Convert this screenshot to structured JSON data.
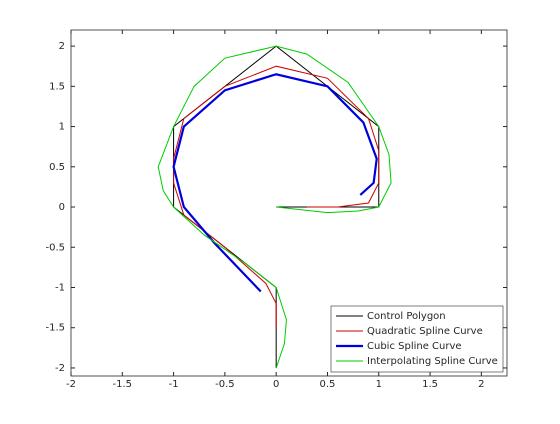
{
  "chart_data": {
    "type": "line",
    "xlim": [
      -2,
      2.25
    ],
    "ylim": [
      -2.1,
      2.2
    ],
    "xticks": [
      -2,
      -1.5,
      -1,
      -0.5,
      0,
      0.5,
      1,
      1.5,
      2
    ],
    "yticks": [
      -2,
      -1.5,
      -1,
      -0.5,
      0,
      0.5,
      1,
      1.5,
      2
    ],
    "legend": "lower-right",
    "series": [
      {
        "name": "Control Polygon",
        "color": "#000000",
        "width": 1,
        "x": [
          0,
          1,
          1,
          0,
          -1,
          -1,
          0,
          0
        ],
        "y": [
          0,
          0,
          1,
          2,
          1,
          0,
          -1,
          -2
        ]
      },
      {
        "name": "Quadratic Spline Curve",
        "color": "#cc0000",
        "width": 1,
        "x": [
          0,
          0,
          -0.1,
          -0.5,
          -0.9,
          -1,
          -1,
          -0.9,
          -0.5,
          0,
          0.5,
          0.9,
          1,
          1,
          0.9,
          0.6,
          0.3
        ],
        "y": [
          -1.5,
          -1.2,
          -0.95,
          -0.5,
          -0.1,
          0.3,
          0.6,
          1.1,
          1.5,
          1.75,
          1.6,
          1.1,
          0.7,
          0.3,
          0.05,
          0,
          0
        ]
      },
      {
        "name": "Cubic Spline Curve",
        "color": "#0000dd",
        "width": 2.2,
        "x": [
          -0.15,
          -0.6,
          -0.9,
          -1,
          -0.9,
          -0.5,
          0,
          0.5,
          0.85,
          0.98,
          0.95,
          0.82
        ],
        "y": [
          -1.05,
          -0.45,
          0,
          0.5,
          1,
          1.45,
          1.65,
          1.5,
          1.05,
          0.6,
          0.3,
          0.15
        ]
      },
      {
        "name": "Interpolating Spline Curve",
        "color": "#00cc00",
        "width": 1,
        "x": [
          0,
          0.5,
          0.8,
          1,
          1.12,
          1.1,
          1,
          0.7,
          0.3,
          0,
          -0.5,
          -0.8,
          -1,
          -1.15,
          -1.1,
          -1,
          -0.7,
          -0.3,
          0,
          0.1,
          0.08,
          0
        ],
        "y": [
          0,
          -0.07,
          -0.05,
          0,
          0.3,
          0.65,
          1,
          1.55,
          1.9,
          2,
          1.85,
          1.5,
          1,
          0.5,
          0.2,
          0,
          -0.35,
          -0.7,
          -1,
          -1.4,
          -1.7,
          -2
        ]
      }
    ]
  }
}
